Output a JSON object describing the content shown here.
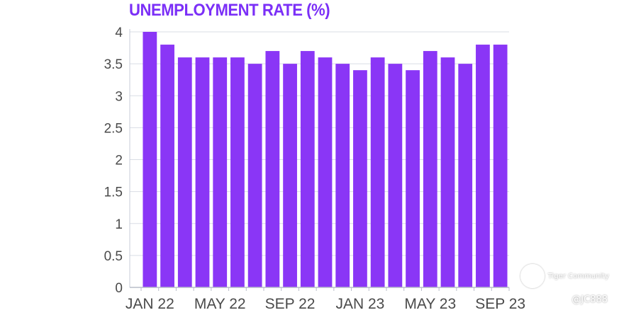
{
  "chart_data": {
    "type": "bar",
    "title": "UNEMPLOYMENT RATE (%)",
    "xlabel": "",
    "ylabel": "",
    "ylim": [
      0,
      4
    ],
    "yticks": [
      "0",
      "0.5",
      "1",
      "1.5",
      "2",
      "2.5",
      "3",
      "3.5",
      "4"
    ],
    "grid": true,
    "bar_color": "#8a36f6",
    "categories": [
      "JAN 22",
      "FEB 22",
      "MAR 22",
      "APR 22",
      "MAY 22",
      "JUN 22",
      "JUL 22",
      "AUG 22",
      "SEP 22",
      "OCT 22",
      "NOV 22",
      "DEC 22",
      "JAN 23",
      "FEB 23",
      "MAR 23",
      "APR 23",
      "MAY 23",
      "JUN 23",
      "JUL 23",
      "AUG 23",
      "SEP 23"
    ],
    "x_tick_labels": [
      "JAN 22",
      "MAY 22",
      "SEP 22",
      "JAN 23",
      "MAY 23",
      "SEP 23"
    ],
    "values": [
      4.0,
      3.8,
      3.6,
      3.6,
      3.6,
      3.6,
      3.5,
      3.7,
      3.5,
      3.7,
      3.6,
      3.5,
      3.4,
      3.6,
      3.5,
      3.4,
      3.7,
      3.6,
      3.5,
      3.8,
      3.8
    ]
  },
  "watermark": {
    "brand": "Tiger Community",
    "handle": "@JC888"
  }
}
